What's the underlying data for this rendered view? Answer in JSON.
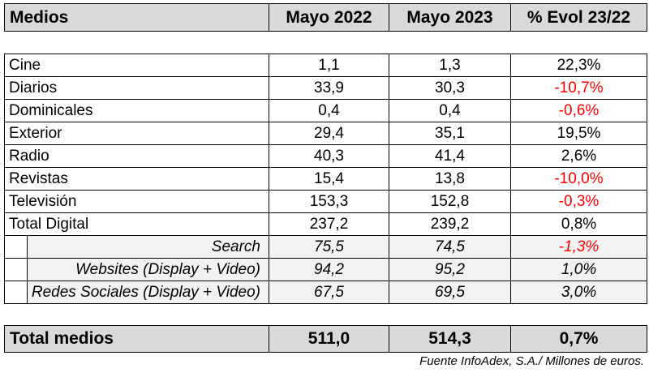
{
  "header": {
    "medios": "Medios",
    "col1": "Mayo 2022",
    "col2": "Mayo 2023",
    "col3": "% Evol 23/22"
  },
  "rows": [
    {
      "label": "Cine",
      "v2022": "1,1",
      "v2023": "1,3",
      "evol": "22,3%"
    },
    {
      "label": "Diarios",
      "v2022": "33,9",
      "v2023": "30,3",
      "evol": "-10,7%"
    },
    {
      "label": "Dominicales",
      "v2022": "0,4",
      "v2023": "0,4",
      "evol": "-0,6%"
    },
    {
      "label": "Exterior",
      "v2022": "29,4",
      "v2023": "35,1",
      "evol": "19,5%"
    },
    {
      "label": "Radio",
      "v2022": "40,3",
      "v2023": "41,4",
      "evol": "2,6%"
    },
    {
      "label": "Revistas",
      "v2022": "15,4",
      "v2023": "13,8",
      "evol": "-10,0%"
    },
    {
      "label": "Televisión",
      "v2022": "153,3",
      "v2023": "152,8",
      "evol": "-0,3%"
    },
    {
      "label": "Total Digital",
      "v2022": "237,2",
      "v2023": "239,2",
      "evol": "0,8%"
    }
  ],
  "subrows": [
    {
      "label": "Search",
      "v2022": "75,5",
      "v2023": "74,5",
      "evol": "-1,3%"
    },
    {
      "label": "Websites (Display + Video)",
      "v2022": "94,2",
      "v2023": "95,2",
      "evol": "1,0%"
    },
    {
      "label": "Redes Sociales (Display + Video)",
      "v2022": "67,5",
      "v2023": "69,5",
      "evol": "3,0%"
    }
  ],
  "total": {
    "label": "Total medios",
    "v2022": "511,0",
    "v2023": "514,3",
    "evol": "0,7%"
  },
  "source": "Fuente InfoAdex, S.A./ Millones de euros.",
  "colors": {
    "header_bg": "#d9d9d9",
    "sub_bg": "#f2f2f2",
    "negative": "#ff0000"
  }
}
